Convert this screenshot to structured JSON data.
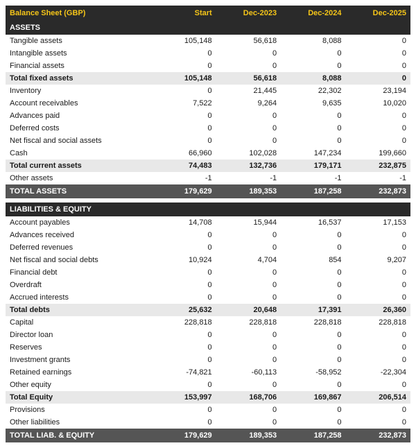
{
  "title": "Balance Sheet (GBP)",
  "columns": [
    "Start",
    "Dec-2023",
    "Dec-2024",
    "Dec-2025"
  ],
  "colors": {
    "header_bg": "#2a2a2a",
    "header_fg": "#f5c518",
    "section_bg": "#2a2a2a",
    "section_fg": "#ffffff",
    "subtotal_bg": "#e8e8e8",
    "total_bg": "#555555",
    "total_fg": "#ffffff",
    "row_bg": "#ffffff",
    "text": "#1a1a1a"
  },
  "rows": [
    {
      "type": "section",
      "label": "ASSETS"
    },
    {
      "type": "data",
      "label": "Tangible assets",
      "v": [
        "105,148",
        "56,618",
        "8,088",
        "0"
      ]
    },
    {
      "type": "data",
      "label": "Intangible assets",
      "v": [
        "0",
        "0",
        "0",
        "0"
      ]
    },
    {
      "type": "data",
      "label": "Financial assets",
      "v": [
        "0",
        "0",
        "0",
        "0"
      ]
    },
    {
      "type": "subtotal",
      "label": "Total fixed assets",
      "v": [
        "105,148",
        "56,618",
        "8,088",
        "0"
      ]
    },
    {
      "type": "data",
      "label": "Inventory",
      "v": [
        "0",
        "21,445",
        "22,302",
        "23,194"
      ]
    },
    {
      "type": "data",
      "label": "Account receivables",
      "v": [
        "7,522",
        "9,264",
        "9,635",
        "10,020"
      ]
    },
    {
      "type": "data",
      "label": "Advances paid",
      "v": [
        "0",
        "0",
        "0",
        "0"
      ]
    },
    {
      "type": "data",
      "label": "Deferred costs",
      "v": [
        "0",
        "0",
        "0",
        "0"
      ]
    },
    {
      "type": "data",
      "label": "Net fiscal and social assets",
      "v": [
        "0",
        "0",
        "0",
        "0"
      ]
    },
    {
      "type": "data",
      "label": "Cash",
      "v": [
        "66,960",
        "102,028",
        "147,234",
        "199,660"
      ]
    },
    {
      "type": "subtotal",
      "label": "Total current assets",
      "v": [
        "74,483",
        "132,736",
        "179,171",
        "232,875"
      ]
    },
    {
      "type": "data",
      "label": "Other assets",
      "v": [
        "-1",
        "-1",
        "-1",
        "-1"
      ]
    },
    {
      "type": "total",
      "label": "TOTAL ASSETS",
      "v": [
        "179,629",
        "189,353",
        "187,258",
        "232,873"
      ]
    },
    {
      "type": "spacer"
    },
    {
      "type": "section",
      "label": "LIABILITIES & EQUITY"
    },
    {
      "type": "data",
      "label": "Account payables",
      "v": [
        "14,708",
        "15,944",
        "16,537",
        "17,153"
      ]
    },
    {
      "type": "data",
      "label": "Advances received",
      "v": [
        "0",
        "0",
        "0",
        "0"
      ]
    },
    {
      "type": "data",
      "label": "Deferred revenues",
      "v": [
        "0",
        "0",
        "0",
        "0"
      ]
    },
    {
      "type": "data",
      "label": "Net fiscal and social debts",
      "v": [
        "10,924",
        "4,704",
        "854",
        "9,207"
      ]
    },
    {
      "type": "data",
      "label": "Financial debt",
      "v": [
        "0",
        "0",
        "0",
        "0"
      ]
    },
    {
      "type": "data",
      "label": "Overdraft",
      "v": [
        "0",
        "0",
        "0",
        "0"
      ]
    },
    {
      "type": "data",
      "label": "Accrued interests",
      "v": [
        "0",
        "0",
        "0",
        "0"
      ]
    },
    {
      "type": "subtotal",
      "label": "Total debts",
      "v": [
        "25,632",
        "20,648",
        "17,391",
        "26,360"
      ]
    },
    {
      "type": "data",
      "label": "Capital",
      "v": [
        "228,818",
        "228,818",
        "228,818",
        "228,818"
      ]
    },
    {
      "type": "data",
      "label": "Director loan",
      "v": [
        "0",
        "0",
        "0",
        "0"
      ]
    },
    {
      "type": "data",
      "label": "Reserves",
      "v": [
        "0",
        "0",
        "0",
        "0"
      ]
    },
    {
      "type": "data",
      "label": "Investment grants",
      "v": [
        "0",
        "0",
        "0",
        "0"
      ]
    },
    {
      "type": "data",
      "label": "Retained earnings",
      "v": [
        "-74,821",
        "-60,113",
        "-58,952",
        "-22,304"
      ]
    },
    {
      "type": "data",
      "label": "Other equity",
      "v": [
        "0",
        "0",
        "0",
        "0"
      ]
    },
    {
      "type": "subtotal",
      "label": "Total Equity",
      "v": [
        "153,997",
        "168,706",
        "169,867",
        "206,514"
      ]
    },
    {
      "type": "data",
      "label": "Provisions",
      "v": [
        "0",
        "0",
        "0",
        "0"
      ]
    },
    {
      "type": "data",
      "label": "Other liabilities",
      "v": [
        "0",
        "0",
        "0",
        "0"
      ]
    },
    {
      "type": "total",
      "label": "TOTAL LIAB. & EQUITY",
      "v": [
        "179,629",
        "189,353",
        "187,258",
        "232,873"
      ]
    }
  ]
}
